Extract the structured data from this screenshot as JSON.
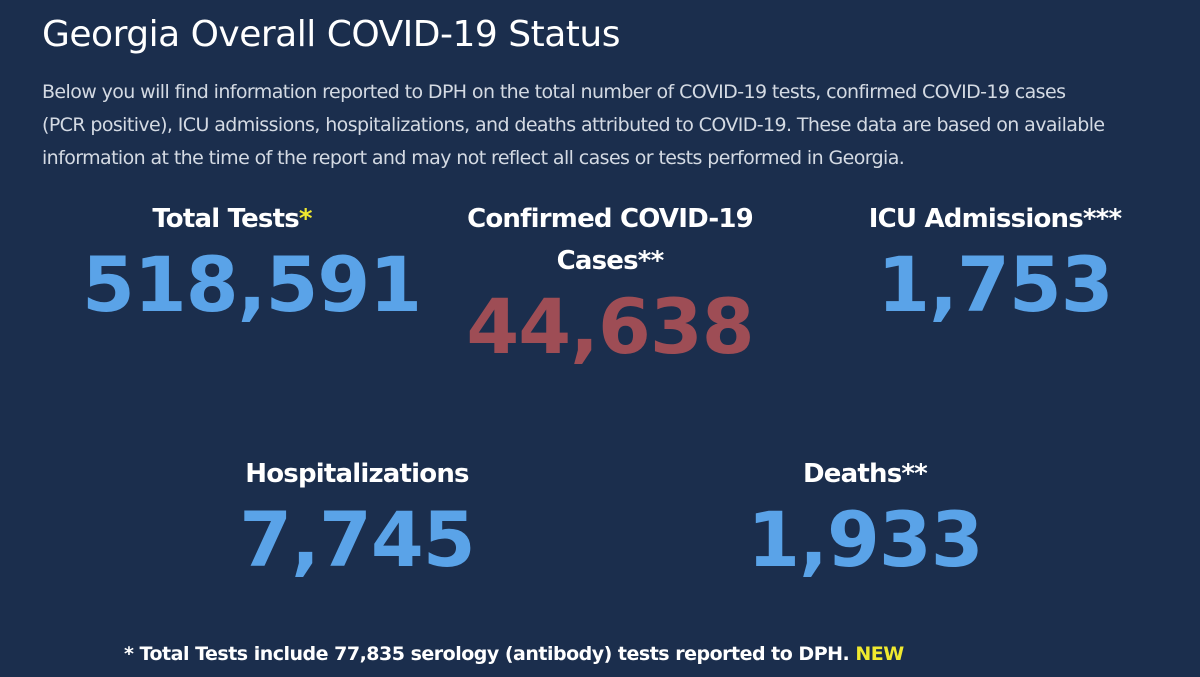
{
  "header": {
    "title": "Georgia Overall COVID-19 Status",
    "description_lines": [
      "Below you will find information reported to DPH on the total number of COVID-19 tests, confirmed COVID-19 cases",
      "(PCR positive), ICU admissions, hospitalizations, and deaths attributed to COVID-19. These data are based on available",
      "information at the time of the report and may not reflect all cases or tests performed in Georgia."
    ]
  },
  "stats": {
    "total_tests": {
      "label": "Total Tests",
      "marker": "*",
      "value": "518,591"
    },
    "confirmed_cases": {
      "label_line1": "Confirmed COVID-19",
      "label_line2": "Cases**",
      "value": "44,638"
    },
    "icu_admissions": {
      "label": "ICU Admissions***",
      "value": "1,753"
    },
    "hospitalizations": {
      "label": "Hospitalizations",
      "value": "7,745"
    },
    "deaths": {
      "label": "Deaths**",
      "value": "1,933"
    }
  },
  "footnote": {
    "text": "* Total Tests include 77,835 serology (antibody) tests reported to DPH.",
    "badge": "NEW"
  },
  "colors": {
    "background": "#1b2e4d",
    "stat_blue": "#5aa3e8",
    "stat_red": "#9e4d55",
    "highlight_yellow": "#f0e92f"
  }
}
